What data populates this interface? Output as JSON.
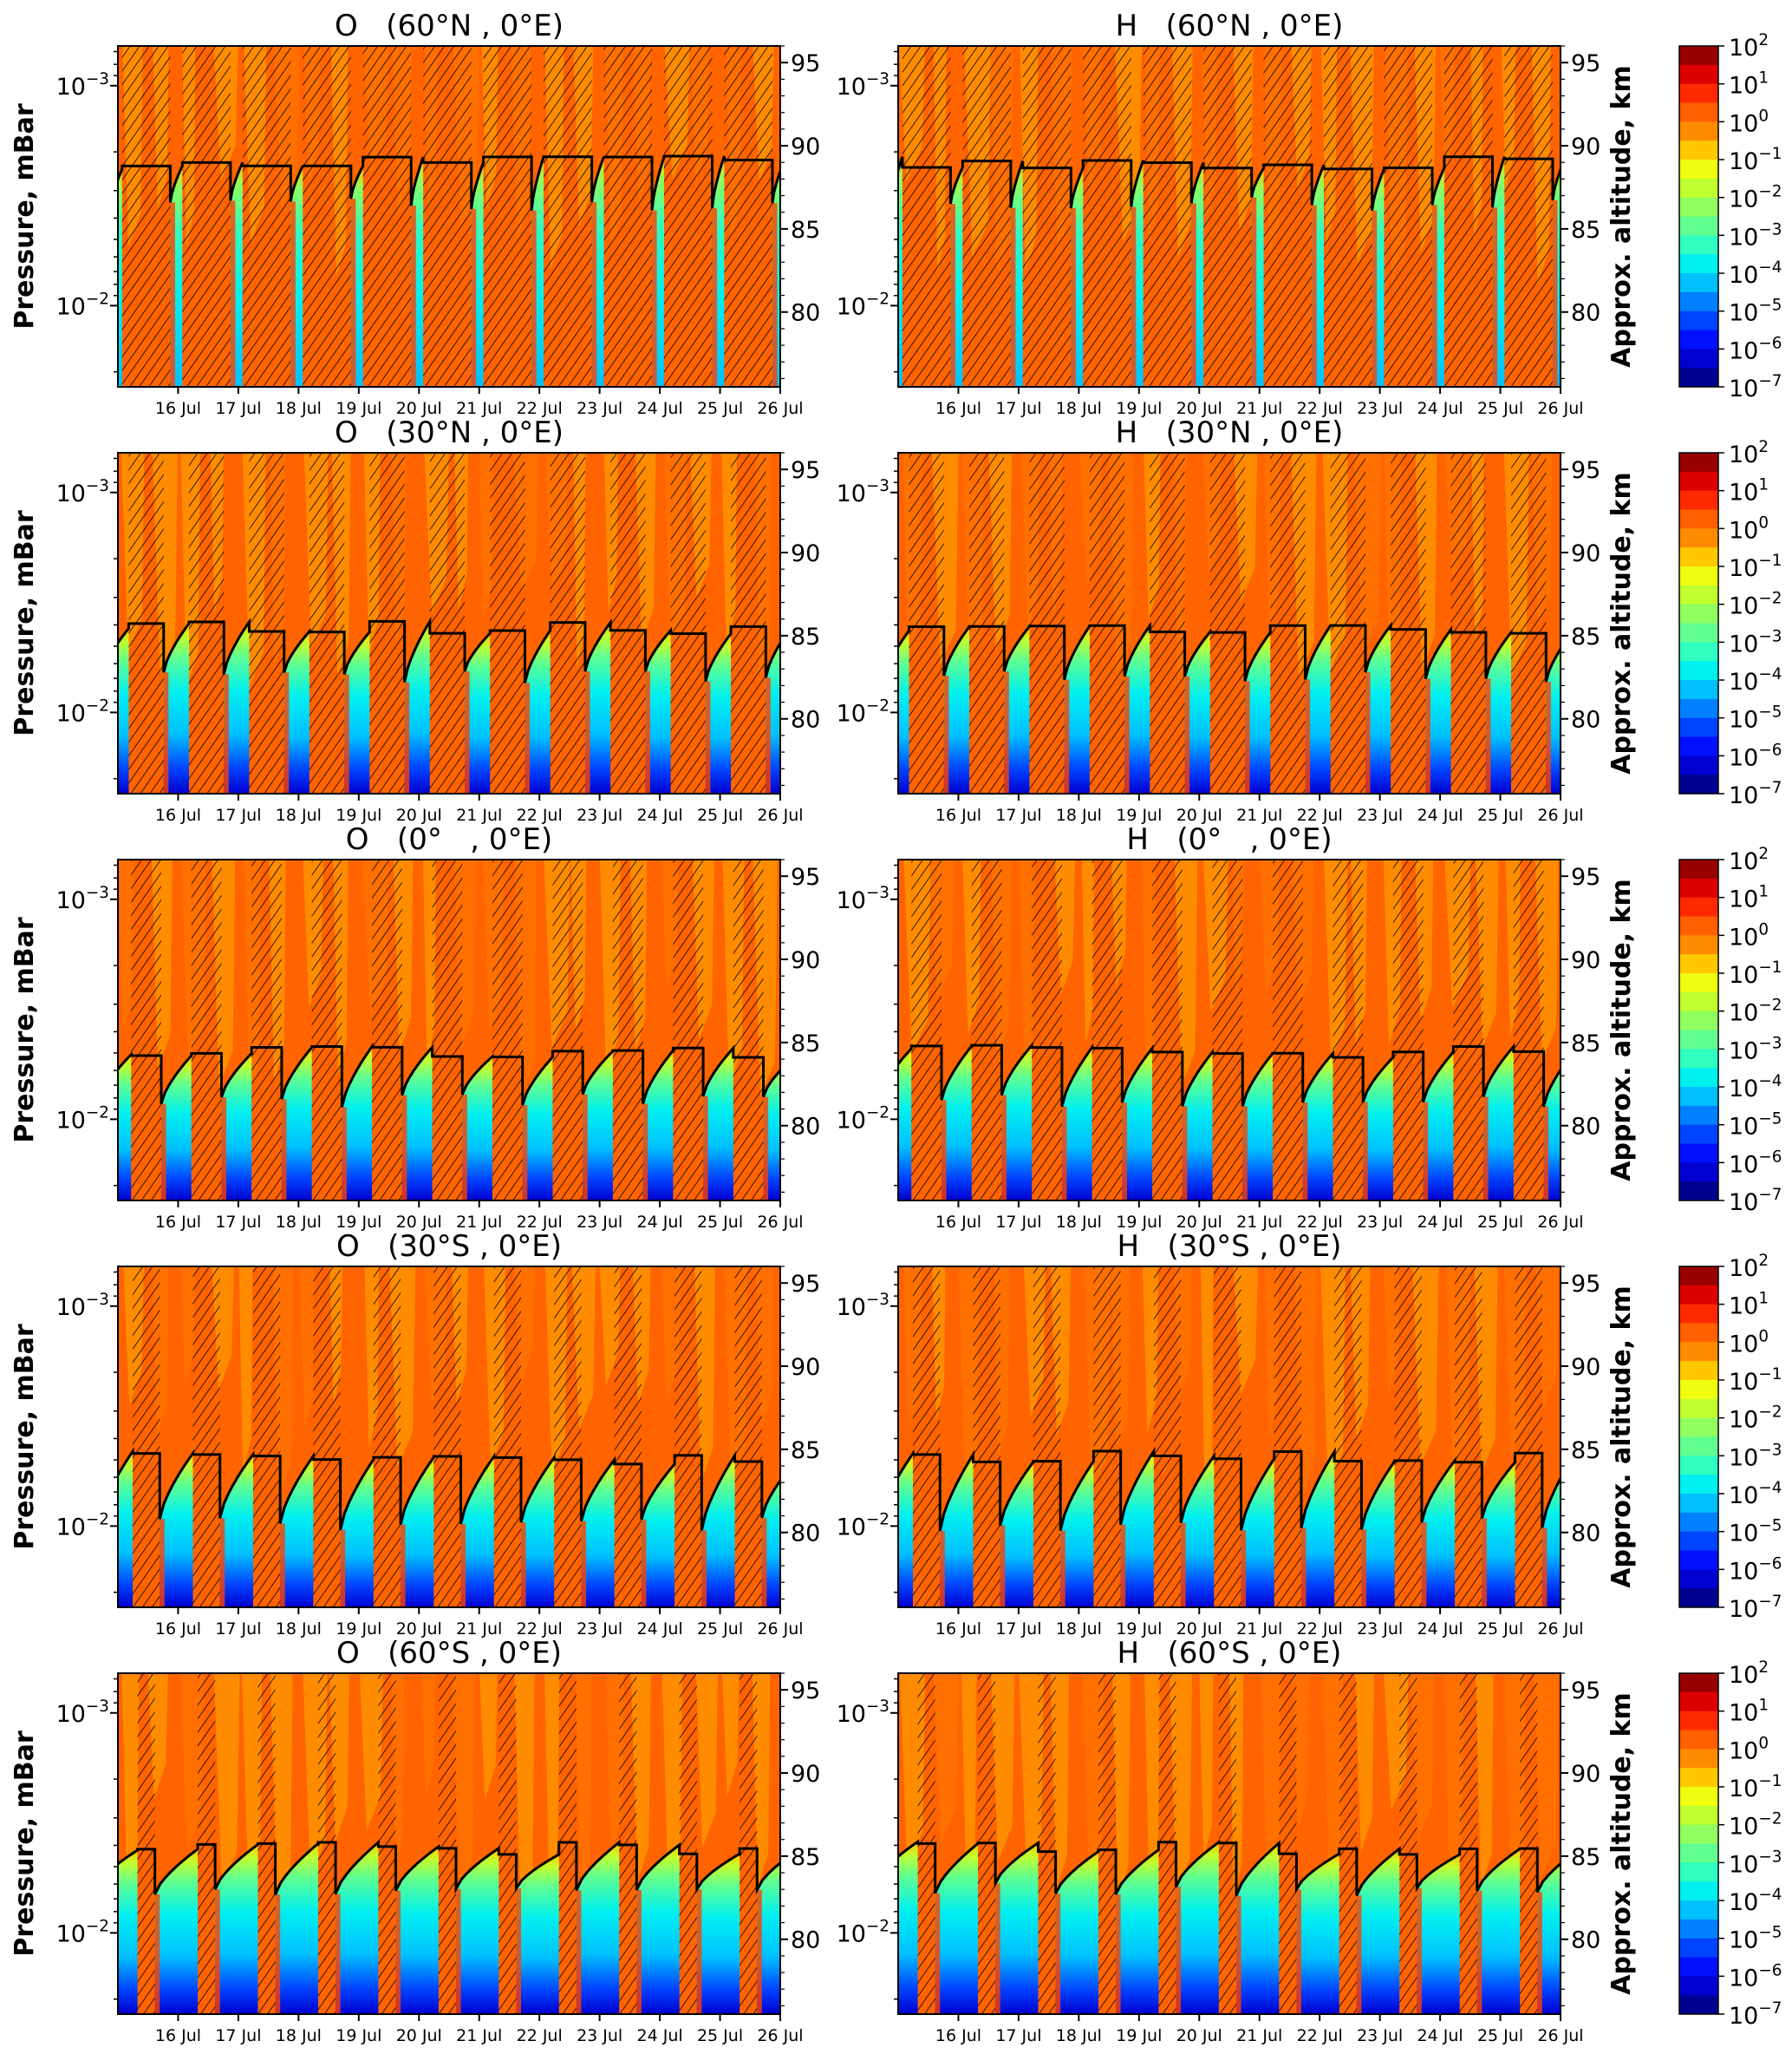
{
  "chart_data": {
    "type": "heatmap",
    "subtype": "filled-contour time-height panels with hatched overlay and contour line",
    "ylabel_left": "Pressure, mBar",
    "ylabel_right": "Approx. altitude, km",
    "x_axis": {
      "range_days": [
        "15 Jul",
        "26 Jul"
      ],
      "tick_labels": [
        "16 Jul",
        "17 Jul",
        "18 Jul",
        "19 Jul",
        "20 Jul",
        "21 Jul",
        "22 Jul",
        "23 Jul",
        "24 Jul",
        "25 Jul",
        "26 Jul"
      ]
    },
    "y_axis_pressure": {
      "scale": "log",
      "range_mbar": [
        0.0234,
        0.00066
      ],
      "ticks": [
        {
          "base": "10",
          "exp": "−3",
          "value": 0.001
        },
        {
          "base": "10",
          "exp": "−2",
          "value": 0.01
        }
      ]
    },
    "y_axis_altitude": {
      "range_km": [
        75.5,
        96
      ],
      "ticks": [
        "80",
        "85",
        "90",
        "95"
      ]
    },
    "colorbar": {
      "scale": "log",
      "range": [
        1e-07,
        100
      ],
      "ticks": [
        {
          "base": "10",
          "exp": "2"
        },
        {
          "base": "10",
          "exp": "1"
        },
        {
          "base": "10",
          "exp": "0"
        },
        {
          "base": "10",
          "exp": "−1"
        },
        {
          "base": "10",
          "exp": "−2"
        },
        {
          "base": "10",
          "exp": "−3"
        },
        {
          "base": "10",
          "exp": "−4"
        },
        {
          "base": "10",
          "exp": "−5"
        },
        {
          "base": "10",
          "exp": "−6"
        },
        {
          "base": "10",
          "exp": "−7"
        }
      ],
      "levels_colors_top_to_bottom": [
        "#990000",
        "#dd0000",
        "#ff2a00",
        "#ff6000",
        "#ff8c00",
        "#ffc800",
        "#f0ff10",
        "#c0ff30",
        "#90ff60",
        "#60ff90",
        "#30ffc0",
        "#00f0f0",
        "#00c0ff",
        "#0080ff",
        "#0044ff",
        "#0010ff",
        "#0000d0",
        "#000090"
      ]
    },
    "rows": [
      {
        "panels": [
          {
            "title": "O   (60°N , 0°E)"
          },
          {
            "title": "H   (60°N , 0°E)"
          }
        ],
        "hatched_fraction_of_day": 0.8,
        "line_km": [
          86.5,
          89
        ],
        "night_depth": 0.55
      },
      {
        "panels": [
          {
            "title": "O   (30°N , 0°E)"
          },
          {
            "title": "H   (30°N , 0°E)"
          }
        ],
        "hatched_fraction_of_day": 0.58,
        "line_km": [
          82.5,
          85.5
        ],
        "night_depth": 0.75
      },
      {
        "panels": [
          {
            "title": "O   (0°   , 0°E)"
          },
          {
            "title": "H   (0°   , 0°E)"
          }
        ],
        "hatched_fraction_of_day": 0.5,
        "line_km": [
          81.5,
          84.5
        ],
        "night_depth": 0.9
      },
      {
        "panels": [
          {
            "title": "O   (30°S , 0°E)"
          },
          {
            "title": "H   (30°S , 0°E)"
          }
        ],
        "hatched_fraction_of_day": 0.45,
        "line_km": [
          80.5,
          84.5
        ],
        "night_depth": 1.0
      },
      {
        "panels": [
          {
            "title": "O   (60°S , 0°E)"
          },
          {
            "title": "H   (60°S , 0°E)"
          }
        ],
        "hatched_fraction_of_day": 0.29,
        "line_km": [
          83,
          85.5
        ],
        "night_depth": 1.0
      }
    ],
    "hatch_meaning_shown": "diagonal hatching over part of each day",
    "grid": false
  }
}
